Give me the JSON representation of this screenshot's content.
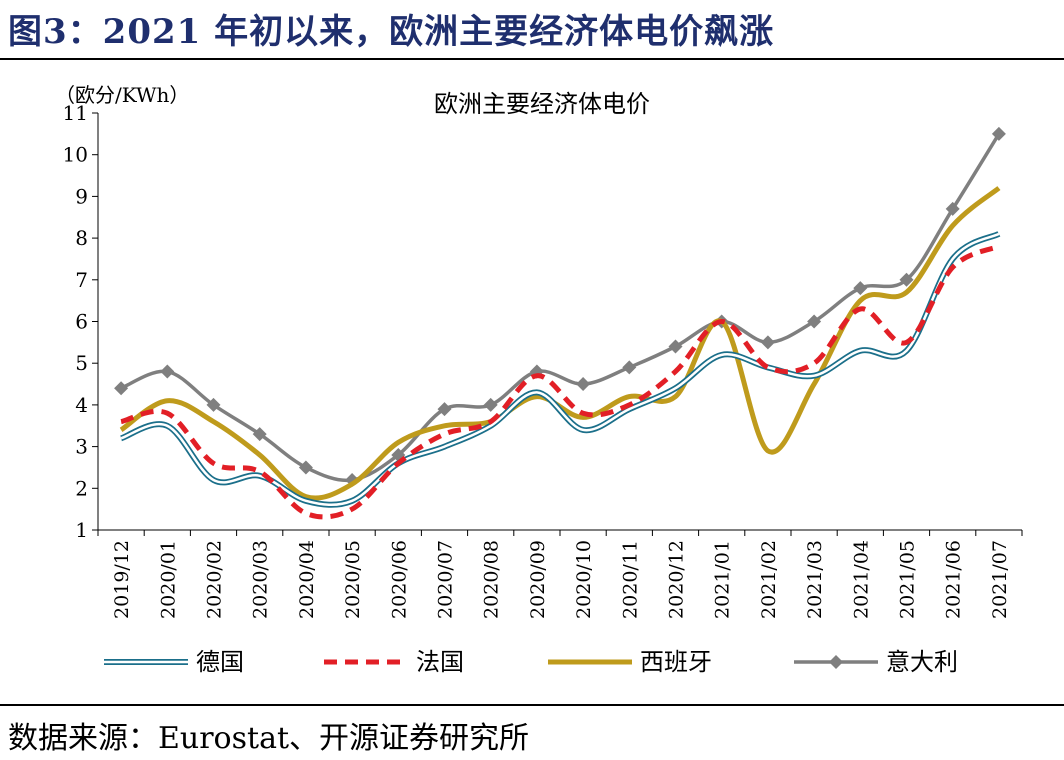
{
  "figure": {
    "title": "图3：2021 年初以来，欧洲主要经济体电价飙涨",
    "source": "数据来源：Eurostat、开源证券研究所"
  },
  "chart_data": {
    "type": "line",
    "title": "欧洲主要经济体电价",
    "ylabel": "（欧分/KWh）",
    "xlabel": "",
    "ylim": [
      1,
      11
    ],
    "yticks": [
      1,
      2,
      3,
      4,
      5,
      6,
      7,
      8,
      9,
      10,
      11
    ],
    "categories": [
      "2019/12",
      "2020/01",
      "2020/02",
      "2020/03",
      "2020/04",
      "2020/05",
      "2020/06",
      "2020/07",
      "2020/08",
      "2020/09",
      "2020/10",
      "2020/11",
      "2020/12",
      "2021/01",
      "2021/02",
      "2021/03",
      "2021/04",
      "2021/05",
      "2021/06",
      "2021/07"
    ],
    "legend_position": "bottom",
    "grid": false,
    "series": [
      {
        "name": "德国",
        "color": "#1b6f8a",
        "style": "double",
        "marker": "none",
        "values": [
          3.2,
          3.5,
          2.2,
          2.3,
          1.7,
          1.7,
          2.6,
          3.0,
          3.5,
          4.3,
          3.4,
          3.9,
          4.4,
          5.2,
          4.9,
          4.7,
          5.3,
          5.3,
          7.5,
          8.1
        ]
      },
      {
        "name": "法国",
        "color": "#e21f26",
        "style": "dashed",
        "marker": "none",
        "values": [
          3.6,
          3.8,
          2.6,
          2.4,
          1.4,
          1.5,
          2.6,
          3.3,
          3.6,
          4.7,
          3.8,
          4.0,
          4.8,
          6.0,
          4.9,
          5.0,
          6.3,
          5.5,
          7.3,
          7.8
        ]
      },
      {
        "name": "西班牙",
        "color": "#bf9b1c",
        "style": "solid",
        "marker": "none",
        "values": [
          3.4,
          4.1,
          3.6,
          2.8,
          1.8,
          2.1,
          3.1,
          3.5,
          3.6,
          4.2,
          3.7,
          4.2,
          4.2,
          6.0,
          2.9,
          4.5,
          6.5,
          6.7,
          8.3,
          9.2
        ]
      },
      {
        "name": "意大利",
        "color": "#7f7f7f",
        "style": "solid",
        "marker": "diamond",
        "values": [
          4.4,
          4.8,
          4.0,
          3.3,
          2.5,
          2.2,
          2.8,
          3.9,
          4.0,
          4.8,
          4.5,
          4.9,
          5.4,
          6.0,
          5.5,
          6.0,
          6.8,
          7.0,
          8.7,
          10.5
        ]
      }
    ]
  }
}
